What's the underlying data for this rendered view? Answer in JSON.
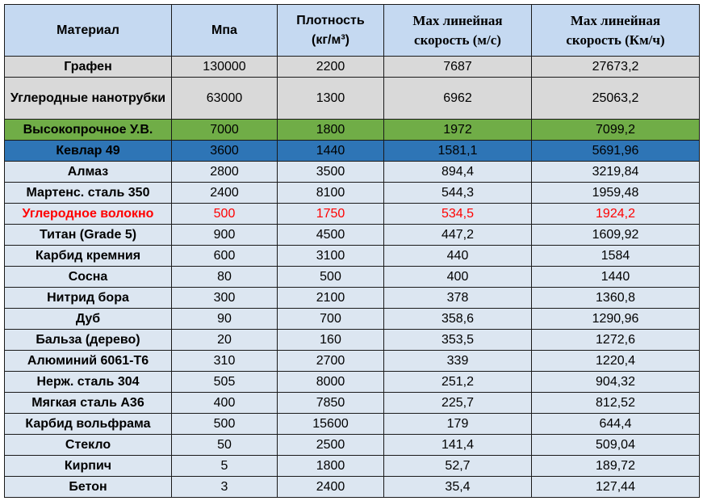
{
  "colors": {
    "header_bg": "#c5d9f1",
    "row_bg": "#dce6f1",
    "gray": "#d9d9d9",
    "green": "#70ad47",
    "blue": "#2e75b6",
    "red_text": "#ff0000"
  },
  "headers": {
    "material": "Материал",
    "mpa": "Мпа",
    "density_line1": "Плотность",
    "density_line2": "(кг/м³)",
    "speed_ms_line1": "Max линейная",
    "speed_ms_line2": "скорость (м/с)",
    "speed_kmh_line1": "Max линейная",
    "speed_kmh_line2": "скорость (Км/ч)"
  },
  "rows": [
    {
      "name": "Графен",
      "mpa": "130000",
      "density": "2200",
      "ms": "7687",
      "kmh": "27673,2",
      "style": "gray"
    },
    {
      "name": "Углеродные нанотрубки",
      "mpa": "63000",
      "density": "1300",
      "ms": "6962",
      "kmh": "25063,2",
      "style": "gray"
    },
    {
      "name": "Высокопрочное У.В.",
      "mpa": "7000",
      "density": "1800",
      "ms": "1972",
      "kmh": "7099,2",
      "style": "green"
    },
    {
      "name": "Кевлар 49",
      "mpa": "3600",
      "density": "1440",
      "ms": "1581,1",
      "kmh": "5691,96",
      "style": "blue"
    },
    {
      "name": "Алмаз",
      "mpa": "2800",
      "density": "3500",
      "ms": "894,4",
      "kmh": "3219,84",
      "style": "normal"
    },
    {
      "name": "Мартенс. сталь 350",
      "mpa": "2400",
      "density": "8100",
      "ms": "544,3",
      "kmh": "1959,48",
      "style": "normal"
    },
    {
      "name": "Углеродное волокно",
      "mpa": "500",
      "density": "1750",
      "ms": "534,5",
      "kmh": "1924,2",
      "style": "red"
    },
    {
      "name": "Титан (Grade 5)",
      "mpa": "900",
      "density": "4500",
      "ms": "447,2",
      "kmh": "1609,92",
      "style": "normal"
    },
    {
      "name": "Карбид кремния",
      "mpa": "600",
      "density": "3100",
      "ms": "440",
      "kmh": "1584",
      "style": "normal"
    },
    {
      "name": "Сосна",
      "mpa": "80",
      "density": "500",
      "ms": "400",
      "kmh": "1440",
      "style": "normal"
    },
    {
      "name": "Нитрид бора",
      "mpa": "300",
      "density": "2100",
      "ms": "378",
      "kmh": "1360,8",
      "style": "normal"
    },
    {
      "name": "Дуб",
      "mpa": "90",
      "density": "700",
      "ms": "358,6",
      "kmh": "1290,96",
      "style": "normal"
    },
    {
      "name": "Бальза (дерево)",
      "mpa": "20",
      "density": "160",
      "ms": "353,5",
      "kmh": "1272,6",
      "style": "normal"
    },
    {
      "name": "Алюминий 6061-T6",
      "mpa": "310",
      "density": "2700",
      "ms": "339",
      "kmh": "1220,4",
      "style": "normal"
    },
    {
      "name": "Нерж. сталь 304",
      "mpa": "505",
      "density": "8000",
      "ms": "251,2",
      "kmh": "904,32",
      "style": "normal"
    },
    {
      "name": "Мягкая сталь A36",
      "mpa": "400",
      "density": "7850",
      "ms": "225,7",
      "kmh": "812,52",
      "style": "normal"
    },
    {
      "name": "Карбид вольфрама",
      "mpa": "500",
      "density": "15600",
      "ms": "179",
      "kmh": "644,4",
      "style": "normal"
    },
    {
      "name": "Стекло",
      "mpa": "50",
      "density": "2500",
      "ms": "141,4",
      "kmh": "509,04",
      "style": "normal"
    },
    {
      "name": "Кирпич",
      "mpa": "5",
      "density": "1800",
      "ms": "52,7",
      "kmh": "189,72",
      "style": "normal"
    },
    {
      "name": "Бетон",
      "mpa": "3",
      "density": "2400",
      "ms": "35,4",
      "kmh": "127,44",
      "style": "normal"
    }
  ]
}
